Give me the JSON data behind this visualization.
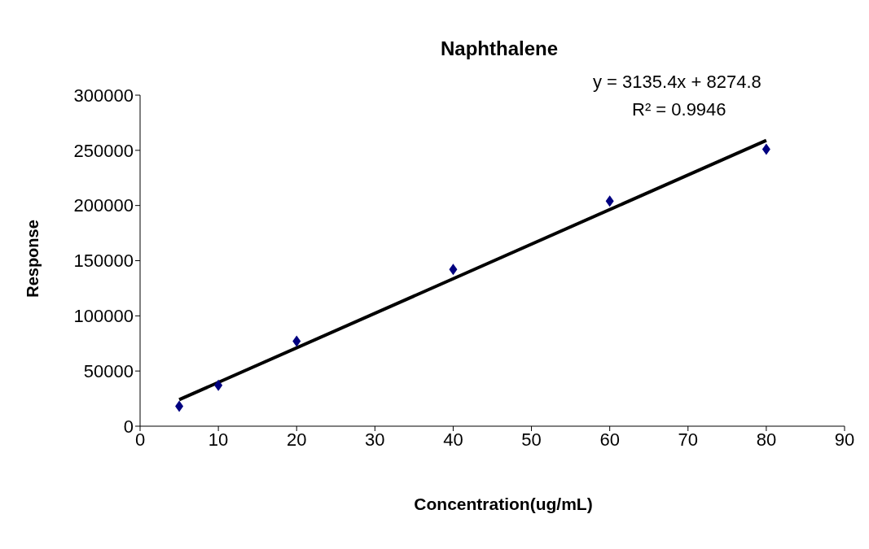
{
  "chart_data": {
    "type": "scatter",
    "title": "Naphthalene",
    "xlabel": "Concentration(ug/mL)",
    "ylabel": "Response",
    "xlim": [
      0,
      90
    ],
    "xticks": [
      0,
      10,
      20,
      30,
      40,
      50,
      60,
      70,
      80,
      90
    ],
    "ylim": [
      0,
      300000
    ],
    "yticks": [
      0,
      50000,
      100000,
      150000,
      200000,
      250000,
      300000
    ],
    "grid": false,
    "legend": false,
    "series": [
      {
        "marker": "diamond",
        "color": "#000080",
        "x": [
          5,
          10,
          20,
          40,
          60,
          80
        ],
        "values": [
          18000,
          37000,
          77000,
          142000,
          204000,
          251000
        ]
      },
      {
        "type": "line",
        "color": "#000000",
        "x": [
          5,
          80
        ],
        "values": [
          24000,
          259000
        ]
      }
    ],
    "annotations": [
      "y = 3135.4x + 8274.8",
      "R² = 0.9946"
    ]
  }
}
